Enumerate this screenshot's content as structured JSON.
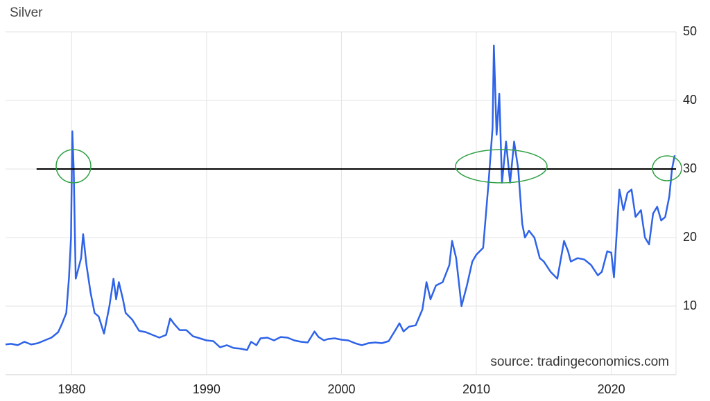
{
  "chart_data": {
    "type": "line",
    "title": "Silver",
    "source": "source: tradingeconomics.com",
    "color": "#2e63e8",
    "grid": true,
    "y_axis_side": "right",
    "xlim": [
      1975.1,
      2024.8
    ],
    "xticks": [
      1980,
      1990,
      2000,
      2010,
      2020
    ],
    "ylim": [
      0,
      50
    ],
    "yticks": [
      10,
      20,
      30,
      40,
      50
    ],
    "reference_line": {
      "value": 30,
      "start": 1977.4,
      "color": "#000000"
    },
    "x": [
      1975.1,
      1975.5,
      1976,
      1976.5,
      1977,
      1977.5,
      1978,
      1978.5,
      1979,
      1979.3,
      1979.6,
      1979.8,
      1979.95,
      1980.05,
      1980.15,
      1980.3,
      1980.5,
      1980.7,
      1980.85,
      1981.1,
      1981.4,
      1981.7,
      1982,
      1982.4,
      1982.8,
      1983.1,
      1983.3,
      1983.5,
      1983.8,
      1984,
      1984.5,
      1985,
      1985.5,
      1986,
      1986.5,
      1987,
      1987.3,
      1987.6,
      1988,
      1988.5,
      1989,
      1989.5,
      1990,
      1990.5,
      1991,
      1991.5,
      1992,
      1992.5,
      1993,
      1993.3,
      1993.7,
      1994,
      1994.5,
      1995,
      1995.5,
      1996,
      1996.5,
      1997,
      1997.5,
      1998,
      1998.3,
      1998.7,
      1999,
      1999.5,
      2000,
      2000.5,
      2001,
      2001.5,
      2002,
      2002.5,
      2003,
      2003.5,
      2004,
      2004.3,
      2004.6,
      2005,
      2005.5,
      2006,
      2006.3,
      2006.6,
      2007,
      2007.5,
      2008,
      2008.2,
      2008.5,
      2008.9,
      2009.3,
      2009.7,
      2010,
      2010.5,
      2010.9,
      2011.2,
      2011.3,
      2011.5,
      2011.7,
      2011.9,
      2012.2,
      2012.5,
      2012.8,
      2013.1,
      2013.4,
      2013.6,
      2013.9,
      2014.3,
      2014.7,
      2015,
      2015.5,
      2016,
      2016.5,
      2016.8,
      2017,
      2017.5,
      2018,
      2018.5,
      2019,
      2019.3,
      2019.7,
      2020,
      2020.2,
      2020.6,
      2020.9,
      2021.2,
      2021.5,
      2021.8,
      2022.2,
      2022.5,
      2022.8,
      2023.1,
      2023.4,
      2023.7,
      2024,
      2024.3,
      2024.5,
      2024.7
    ],
    "values": [
      4.4,
      4.5,
      4.3,
      4.8,
      4.4,
      4.6,
      5.0,
      5.4,
      6.2,
      7.5,
      9.0,
      14,
      20,
      35.5,
      30,
      14,
      15.5,
      17,
      20.5,
      16,
      12,
      9,
      8.5,
      6,
      10,
      14,
      11,
      13.5,
      11,
      9,
      8,
      6.4,
      6.2,
      5.8,
      5.4,
      5.8,
      8.2,
      7.4,
      6.5,
      6.5,
      5.6,
      5.3,
      5.0,
      4.9,
      4.0,
      4.3,
      3.9,
      3.8,
      3.6,
      4.8,
      4.3,
      5.3,
      5.4,
      5.0,
      5.5,
      5.4,
      5.0,
      4.8,
      4.7,
      6.3,
      5.5,
      5.0,
      5.2,
      5.3,
      5.1,
      5.0,
      4.6,
      4.3,
      4.6,
      4.7,
      4.6,
      4.9,
      6.5,
      7.5,
      6.3,
      7.0,
      7.2,
      9.5,
      13.5,
      11,
      13,
      13.5,
      16,
      19.5,
      17,
      10,
      13,
      16.5,
      17.5,
      18.5,
      28,
      36,
      48,
      35,
      41,
      28,
      34,
      28,
      34,
      30,
      22,
      20,
      21,
      20,
      17,
      16.5,
      15,
      14,
      19.5,
      18,
      16.5,
      17,
      16.8,
      16,
      14.5,
      15,
      18,
      17.8,
      14.2,
      27,
      24,
      26.5,
      27,
      23,
      24,
      20,
      19,
      23.5,
      24.5,
      22.5,
      23,
      26,
      30,
      32
    ]
  }
}
